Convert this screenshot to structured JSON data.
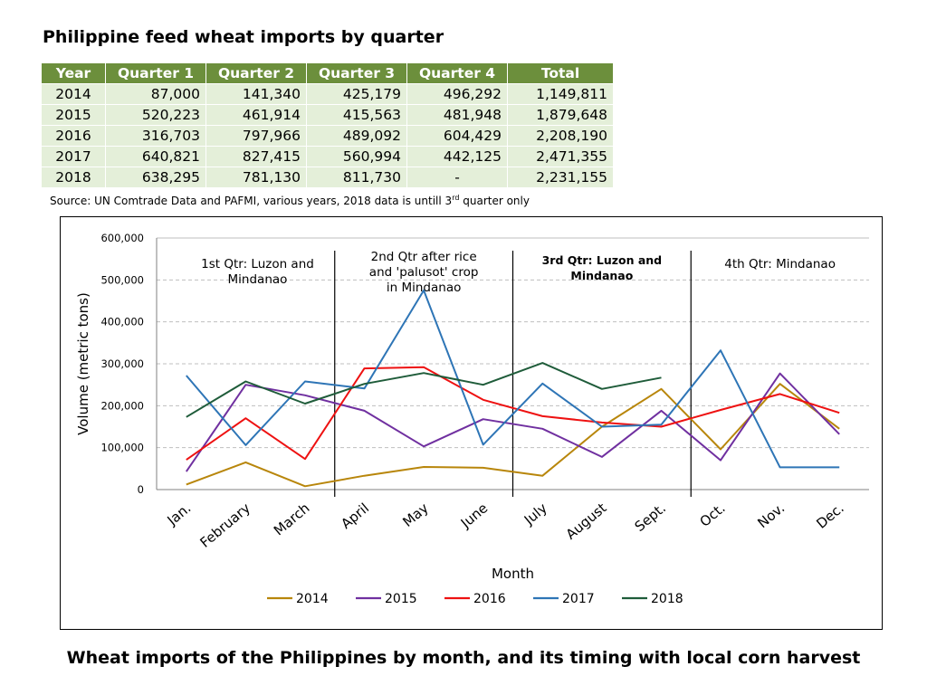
{
  "title": "Philippine feed wheat imports by quarter",
  "table": {
    "headers": [
      "Year",
      "Quarter 1",
      "Quarter 2",
      "Quarter 3",
      "Quarter 4",
      "Total"
    ],
    "rows": [
      [
        "2014",
        "87,000",
        "141,340",
        "425,179",
        "496,292",
        "1,149,811"
      ],
      [
        "2015",
        "520,223",
        "461,914",
        "415,563",
        "481,948",
        "1,879,648"
      ],
      [
        "2016",
        "316,703",
        "797,966",
        "489,092",
        "604,429",
        "2,208,190"
      ],
      [
        "2017",
        "640,821",
        "827,415",
        "560,994",
        "442,125",
        "2,471,355"
      ],
      [
        "2018",
        "638,295",
        "781,130",
        "811,730",
        "-",
        "2,231,155"
      ]
    ],
    "header_color": "#6c8f3c",
    "cell_color": "#e4efd9"
  },
  "source": {
    "text_before": "Source: UN Comtrade Data and PAFMI, various years, 2018 data is untill 3",
    "sup": "rd",
    "text_after": " quarter only"
  },
  "caption": "Wheat imports of the Philippines by month, and its timing with local corn harvest",
  "chart_data": {
    "type": "line",
    "categories": [
      "Jan.",
      "February",
      "March",
      "April",
      "May",
      "June",
      "July",
      "August",
      "Sept.",
      "Oct.",
      "Nov.",
      "Dec."
    ],
    "xlabel": "Month",
    "ylabel": "Volume (metric tons)",
    "ylim": [
      0,
      600000
    ],
    "yticks": [
      0,
      100000,
      200000,
      300000,
      400000,
      500000,
      600000
    ],
    "ytick_labels": [
      "0",
      "100,000",
      "200,000",
      "300,000",
      "400,000",
      "500,000",
      "600,000"
    ],
    "grid": true,
    "legend_position": "bottom",
    "series": [
      {
        "name": "2014",
        "color": "#b8860b",
        "values": [
          12000,
          65000,
          8000,
          33000,
          54000,
          52000,
          33000,
          150000,
          240000,
          96000,
          252000,
          145000
        ]
      },
      {
        "name": "2015",
        "color": "#7030a0",
        "values": [
          43000,
          250000,
          225000,
          188000,
          103000,
          168000,
          145000,
          78000,
          188000,
          70000,
          277000,
          132000
        ]
      },
      {
        "name": "2016",
        "color": "#ee1111",
        "values": [
          71000,
          170000,
          73000,
          289000,
          292000,
          214000,
          175000,
          160000,
          150000,
          190000,
          228000,
          183000
        ]
      },
      {
        "name": "2017",
        "color": "#2e75b6",
        "values": [
          272000,
          106000,
          258000,
          241000,
          475000,
          107000,
          253000,
          150000,
          155000,
          332000,
          53000,
          53000
        ]
      },
      {
        "name": "2018",
        "color": "#1f5c3a",
        "values": [
          173000,
          258000,
          205000,
          252000,
          278000,
          250000,
          302000,
          240000,
          267000,
          null,
          null,
          null
        ]
      }
    ],
    "annotations": [
      {
        "lines": [
          "1st Qtr: Luzon and",
          "Mindanao"
        ],
        "bold": false
      },
      {
        "lines": [
          "2nd  Qtr after rice",
          "and 'palusot' crop",
          "in Mindanao"
        ],
        "bold": false
      },
      {
        "lines": [
          "3rd Qtr: Luzon and",
          "Mindanao"
        ],
        "bold": true
      },
      {
        "lines": [
          "4th Qtr: Mindanao"
        ],
        "bold": false
      }
    ],
    "quarter_dividers_after_index": [
      2.5,
      5.5,
      8.5
    ]
  }
}
